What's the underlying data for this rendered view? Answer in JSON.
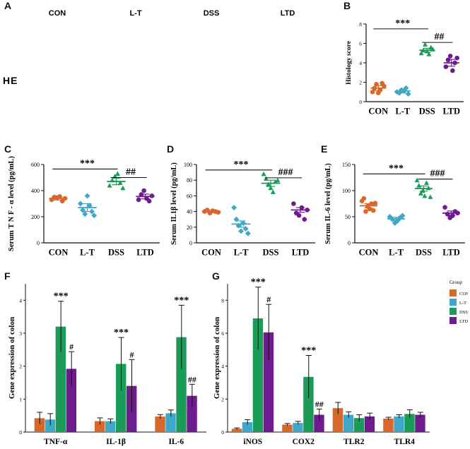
{
  "panel_letters": {
    "A": "A",
    "B": "B",
    "C": "C",
    "D": "D",
    "E": "E",
    "F": "F",
    "G": "G"
  },
  "he_label": "HE",
  "histology_columns": [
    "CON",
    "L-T",
    "DSS",
    "LTD"
  ],
  "colors": {
    "CON": "#d8672a",
    "L-T": "#3fa8c8",
    "DSS": "#1a9b57",
    "LTD": "#6e1b8e",
    "tissue_bg": "#e6dfd9",
    "tissue_pink": "#c66a8a",
    "tissue_purple": "#7c5aa6"
  },
  "chart_data": [
    {
      "id": "B",
      "type": "scatter",
      "ylabel": "Histology score",
      "ylim": [
        0,
        8
      ],
      "yticks": [
        0,
        2,
        4,
        6,
        8
      ],
      "categories": [
        "CON",
        "L-T",
        "DSS",
        "LTD"
      ],
      "means": [
        1.4,
        1.1,
        5.3,
        4.0
      ],
      "sem": [
        0.25,
        0.2,
        0.2,
        0.35
      ],
      "points": [
        [
          1.0,
          1.4,
          1.8,
          0.9,
          1.2,
          1.9,
          1.6
        ],
        [
          1.0,
          0.9,
          1.2,
          1.1,
          1.4,
          0.8
        ],
        [
          5.0,
          5.3,
          5.9,
          5.2,
          4.9,
          5.6,
          5.4
        ],
        [
          3.6,
          4.3,
          4.7,
          3.2,
          4.0,
          4.5
        ]
      ],
      "sig": [
        {
          "text": "***",
          "from": 0,
          "to": 2,
          "y": 7.5
        },
        {
          "text": "##",
          "from": 2,
          "to": 3,
          "y": 6.1
        }
      ]
    },
    {
      "id": "C",
      "type": "scatter",
      "ylabel": "Serum T N F - α level (pg/mL)",
      "ylim": [
        0,
        600
      ],
      "yticks": [
        0,
        200,
        400,
        600
      ],
      "categories": [
        "CON",
        "L-T",
        "DSS",
        "LTD"
      ],
      "means": [
        340,
        270,
        470,
        355
      ],
      "sem": [
        12,
        30,
        25,
        18
      ],
      "points": [
        [
          330,
          350,
          345,
          355,
          320,
          340
        ],
        [
          300,
          250,
          220,
          360,
          285,
          240,
          210
        ],
        [
          440,
          480,
          510,
          530,
          460,
          420
        ],
        [
          330,
          370,
          400,
          340,
          320,
          360
        ]
      ],
      "sig": [
        {
          "text": "***",
          "from": 0,
          "to": 2,
          "y": 565
        },
        {
          "text": "##",
          "from": 2,
          "to": 3,
          "y": 500
        }
      ]
    },
    {
      "id": "D",
      "type": "scatter",
      "ylabel": "Serum IL1β level (pg/mL)",
      "ylim": [
        0,
        100
      ],
      "yticks": [
        0,
        20,
        40,
        60,
        80,
        100
      ],
      "categories": [
        "CON",
        "L-T",
        "DSS",
        "LTD"
      ],
      "means": [
        40,
        24,
        76,
        42
      ],
      "sem": [
        1.5,
        4,
        4,
        3
      ],
      "points": [
        [
          40,
          42,
          38,
          41,
          40,
          39
        ],
        [
          45,
          30,
          22,
          15,
          25,
          18,
          12
        ],
        [
          88,
          82,
          75,
          70,
          65,
          78,
          80
        ],
        [
          50,
          38,
          35,
          45,
          30,
          42
        ]
      ],
      "sig": [
        {
          "text": "***",
          "from": 0,
          "to": 2,
          "y": 93
        },
        {
          "text": "###",
          "from": 2,
          "to": 3,
          "y": 83
        }
      ]
    },
    {
      "id": "E",
      "type": "scatter",
      "ylabel": "Serum IL-6 level (pg/mL)",
      "ylim": [
        0,
        150
      ],
      "yticks": [
        0,
        50,
        100,
        150
      ],
      "categories": [
        "CON",
        "L-T",
        "DSS",
        "LTD"
      ],
      "means": [
        71,
        46,
        104,
        57
      ],
      "sem": [
        4,
        3,
        5,
        4
      ],
      "points": [
        [
          80,
          85,
          60,
          70,
          65,
          75,
          62,
          76
        ],
        [
          50,
          45,
          38,
          42,
          48,
          52
        ],
        [
          120,
          110,
          95,
          100,
          90,
          115,
          105,
          88
        ],
        [
          68,
          55,
          48,
          52,
          60,
          57
        ]
      ],
      "sig": [
        {
          "text": "***",
          "from": 0,
          "to": 2,
          "y": 132
        },
        {
          "text": "###",
          "from": 2,
          "to": 3,
          "y": 122
        }
      ]
    },
    {
      "id": "F",
      "type": "bar",
      "ylabel": "Gene expression of colon",
      "ylim": [
        0,
        4.5
      ],
      "yticks": [
        0,
        1,
        2,
        3,
        4
      ],
      "categories": [
        "TNF-α",
        "IL-1β",
        "IL-6"
      ],
      "series": [
        {
          "name": "CON",
          "values": [
            0.42,
            0.33,
            0.47
          ],
          "err": [
            0.18,
            0.1,
            0.06
          ]
        },
        {
          "name": "L-T",
          "values": [
            0.38,
            0.33,
            0.57
          ],
          "err": [
            0.18,
            0.07,
            0.1
          ]
        },
        {
          "name": "DSS",
          "values": [
            3.2,
            2.07,
            2.88
          ],
          "err": [
            0.77,
            0.8,
            0.97
          ]
        },
        {
          "name": "LTD",
          "values": [
            1.92,
            1.4,
            1.1
          ],
          "err": [
            0.52,
            0.8,
            0.35
          ]
        }
      ],
      "sig": [
        {
          "text": "***",
          "cat": 0,
          "bar": 2
        },
        {
          "text": "#",
          "cat": 0,
          "bar": 3
        },
        {
          "text": "***",
          "cat": 1,
          "bar": 2
        },
        {
          "text": "#",
          "cat": 1,
          "bar": 3
        },
        {
          "text": "***",
          "cat": 2,
          "bar": 2
        },
        {
          "text": "##",
          "cat": 2,
          "bar": 3
        }
      ]
    },
    {
      "id": "G",
      "type": "bar",
      "ylabel": "Gene expression of colon",
      "ylim": [
        0,
        9
      ],
      "yticks": [
        0,
        2,
        4,
        6,
        8
      ],
      "categories": [
        "iNOS",
        "COX2",
        "TLR2",
        "TLR4"
      ],
      "series": [
        {
          "name": "CON",
          "values": [
            0.2,
            0.45,
            1.45,
            0.82
          ],
          "err": [
            0.05,
            0.07,
            0.35,
            0.08
          ]
        },
        {
          "name": "L-T",
          "values": [
            0.6,
            0.55,
            1.05,
            0.95
          ],
          "err": [
            0.15,
            0.1,
            0.18,
            0.1
          ]
        },
        {
          "name": "DSS",
          "values": [
            6.9,
            3.35,
            0.85,
            1.1
          ],
          "err": [
            1.9,
            1.3,
            0.2,
            0.25
          ]
        },
        {
          "name": "LTD",
          "values": [
            6.05,
            1.05,
            0.95,
            1.05
          ],
          "err": [
            1.7,
            0.35,
            0.2,
            0.15
          ]
        }
      ],
      "sig": [
        {
          "text": "***",
          "cat": 0,
          "bar": 2
        },
        {
          "text": "#",
          "cat": 0,
          "bar": 3
        },
        {
          "text": "***",
          "cat": 1,
          "bar": 2
        },
        {
          "text": "##",
          "cat": 1,
          "bar": 3
        }
      ],
      "legend": {
        "title": "Group",
        "items": [
          "CON",
          "L-T",
          "DSS",
          "LTD"
        ],
        "position": "top-right"
      }
    }
  ]
}
